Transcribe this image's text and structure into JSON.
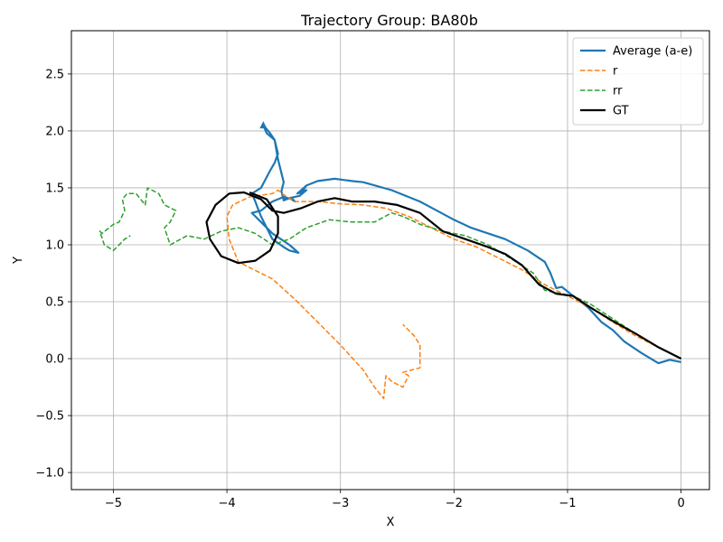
{
  "chart_data": {
    "type": "line",
    "title": "Trajectory Group: BA80b",
    "xlabel": "X",
    "ylabel": "Y",
    "xlim": [
      -5.37,
      0.25
    ],
    "ylim": [
      -1.15,
      2.88
    ],
    "xticks": [
      -5,
      -4,
      -3,
      -2,
      -1,
      0
    ],
    "yticks": [
      -1.0,
      -0.5,
      0.0,
      0.5,
      1.0,
      1.5,
      2.0,
      2.5
    ],
    "xtick_labels": [
      "−5",
      "−4",
      "−3",
      "−2",
      "−1",
      "0"
    ],
    "ytick_labels": [
      "−1.0",
      "−0.5",
      "0.0",
      "0.5",
      "1.0",
      "1.5",
      "2.0",
      "2.5"
    ],
    "grid": true,
    "legend_position": "top-right",
    "series": [
      {
        "name": "Average (a-e)",
        "color": "#1f77b4",
        "style": "solid",
        "x": [
          0.0,
          -0.1,
          -0.2,
          -0.35,
          -0.5,
          -0.6,
          -0.7,
          -0.82,
          -0.95,
          -1.05,
          -1.1,
          -1.15,
          -1.2,
          -1.35,
          -1.55,
          -1.85,
          -2.0,
          -2.15,
          -2.3,
          -2.55,
          -2.8,
          -2.9,
          -3.05,
          -3.2,
          -3.3,
          -3.35,
          -3.3,
          -3.38,
          -3.3,
          -3.36,
          -3.45,
          -3.5,
          -3.52,
          -3.5,
          -3.55,
          -3.58,
          -3.65,
          -3.68,
          -3.62,
          -3.58,
          -3.55,
          -3.58,
          -3.62,
          -3.7,
          -3.78,
          -3.75,
          -3.72,
          -3.7,
          -3.65,
          -3.6,
          -3.5,
          -3.45,
          -3.37,
          -3.45,
          -3.6,
          -3.7,
          -3.75,
          -3.78,
          -3.7,
          -3.6,
          -3.5,
          -3.42,
          -3.4,
          -3.45,
          -3.5
        ],
        "y": [
          -0.03,
          -0.01,
          -0.04,
          0.05,
          0.15,
          0.25,
          0.32,
          0.45,
          0.55,
          0.63,
          0.62,
          0.75,
          0.85,
          0.95,
          1.05,
          1.15,
          1.22,
          1.3,
          1.38,
          1.48,
          1.55,
          1.56,
          1.58,
          1.56,
          1.52,
          1.45,
          1.52,
          1.45,
          1.48,
          1.43,
          1.41,
          1.39,
          1.47,
          1.55,
          1.75,
          1.92,
          1.98,
          2.05,
          1.98,
          1.92,
          1.8,
          1.72,
          1.65,
          1.5,
          1.45,
          1.38,
          1.3,
          1.25,
          1.15,
          1.05,
          0.98,
          0.95,
          0.93,
          1.0,
          1.1,
          1.2,
          1.25,
          1.28,
          1.3,
          1.38,
          1.42,
          1.4,
          1.38,
          1.41,
          1.4
        ]
      },
      {
        "name": "r",
        "color": "#ff7f0e",
        "style": "dashed",
        "x": [
          0.0,
          -0.2,
          -0.4,
          -0.6,
          -0.8,
          -1.0,
          -1.2,
          -1.4,
          -1.6,
          -1.8,
          -2.0,
          -2.2,
          -2.4,
          -2.6,
          -2.8,
          -3.0,
          -3.2,
          -3.4,
          -3.5,
          -3.55,
          -3.6,
          -3.8,
          -3.95,
          -4.0,
          -3.98,
          -3.9,
          -3.8,
          -3.6,
          -3.4,
          -3.2,
          -3.0,
          -2.8,
          -2.7,
          -2.62,
          -2.6,
          -2.55,
          -2.45,
          -2.4,
          -2.45,
          -2.3,
          -2.3,
          -2.3,
          -2.35,
          -2.4,
          -2.45
        ],
        "y": [
          0.0,
          0.1,
          0.2,
          0.32,
          0.45,
          0.55,
          0.65,
          0.78,
          0.88,
          0.98,
          1.05,
          1.15,
          1.25,
          1.32,
          1.35,
          1.36,
          1.38,
          1.38,
          1.44,
          1.48,
          1.45,
          1.42,
          1.35,
          1.25,
          1.05,
          0.85,
          0.8,
          0.7,
          0.52,
          0.32,
          0.12,
          -0.1,
          -0.25,
          -0.35,
          -0.15,
          -0.2,
          -0.25,
          -0.15,
          -0.12,
          -0.08,
          0.0,
          0.12,
          0.2,
          0.25,
          0.3
        ]
      },
      {
        "name": "rr",
        "color": "#2ca02c",
        "style": "dashed",
        "x": [
          0.0,
          -0.2,
          -0.4,
          -0.6,
          -0.8,
          -0.95,
          -1.1,
          -1.2,
          -1.3,
          -1.5,
          -1.7,
          -1.9,
          -2.1,
          -2.3,
          -2.45,
          -2.55,
          -2.7,
          -2.9,
          -3.1,
          -3.3,
          -3.45,
          -3.6,
          -3.75,
          -3.9,
          -4.05,
          -4.2,
          -4.35,
          -4.5,
          -4.55,
          -4.5,
          -4.45,
          -4.55,
          -4.6,
          -4.7,
          -4.72,
          -4.8,
          -4.88,
          -4.92,
          -4.9,
          -4.95,
          -5.0,
          -5.1,
          -5.12,
          -5.08,
          -5.0,
          -4.95,
          -4.9,
          -4.85
        ],
        "y": [
          0.0,
          0.1,
          0.22,
          0.35,
          0.48,
          0.55,
          0.58,
          0.6,
          0.75,
          0.88,
          1.0,
          1.08,
          1.12,
          1.18,
          1.25,
          1.28,
          1.2,
          1.2,
          1.22,
          1.15,
          1.05,
          1.0,
          1.1,
          1.15,
          1.12,
          1.05,
          1.08,
          1.0,
          1.15,
          1.2,
          1.3,
          1.35,
          1.45,
          1.5,
          1.35,
          1.45,
          1.45,
          1.4,
          1.3,
          1.2,
          1.18,
          1.1,
          1.12,
          1.0,
          0.95,
          1.0,
          1.05,
          1.08
        ]
      },
      {
        "name": "GT",
        "color": "#000000",
        "style": "solid",
        "x": [
          0.0,
          -0.2,
          -0.4,
          -0.6,
          -0.8,
          -0.95,
          -1.1,
          -1.25,
          -1.4,
          -1.55,
          -1.7,
          -1.9,
          -2.1,
          -2.3,
          -2.5,
          -2.7,
          -2.9,
          -3.05,
          -3.2,
          -3.35,
          -3.5,
          -3.6,
          -3.7,
          -3.85,
          -3.98,
          -4.1,
          -4.18,
          -4.15,
          -4.05,
          -3.9,
          -3.75,
          -3.62,
          -3.55,
          -3.55,
          -3.65,
          -3.8
        ],
        "y": [
          0.0,
          0.1,
          0.22,
          0.33,
          0.45,
          0.55,
          0.57,
          0.65,
          0.82,
          0.92,
          0.98,
          1.05,
          1.12,
          1.28,
          1.35,
          1.38,
          1.38,
          1.41,
          1.38,
          1.32,
          1.28,
          1.3,
          1.4,
          1.46,
          1.45,
          1.35,
          1.2,
          1.05,
          0.9,
          0.84,
          0.86,
          0.95,
          1.1,
          1.25,
          1.4,
          1.46
        ]
      }
    ]
  }
}
